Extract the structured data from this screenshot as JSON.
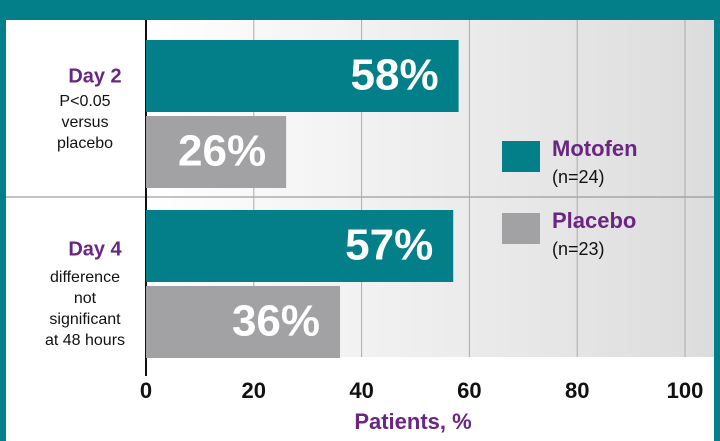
{
  "chart_data": {
    "type": "bar",
    "orientation": "horizontal",
    "categories": [
      "Day 2",
      "Day 4"
    ],
    "notes": [
      [
        "P<0.05",
        "versus",
        "placebo"
      ],
      [
        "difference",
        "not",
        "significant",
        "at 48 hours"
      ]
    ],
    "series": [
      {
        "name": "Motofen",
        "sample": "(n=24)",
        "color": "#037f89",
        "values": [
          58,
          57
        ],
        "value_labels": [
          "58%",
          "57%"
        ]
      },
      {
        "name": "Placebo",
        "sample": "(n=23)",
        "color": "#a2a2a4",
        "values": [
          26,
          36
        ],
        "value_labels": [
          "26%",
          "36%"
        ]
      }
    ],
    "xlim": [
      0,
      100
    ],
    "xticks": [
      0,
      20,
      40,
      60,
      80,
      100
    ],
    "xlabel": "Patients, %",
    "grid": true
  }
}
